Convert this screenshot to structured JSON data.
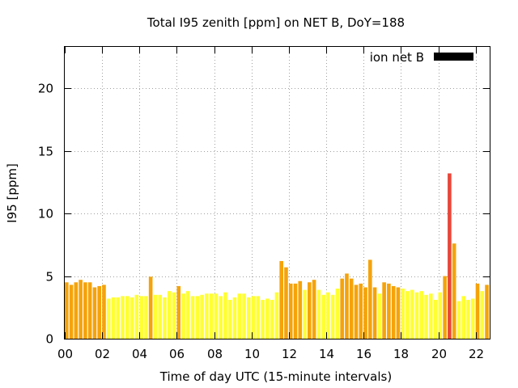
{
  "chart_data": {
    "type": "bar",
    "title": "Total I95 zenith [ppm] on NET B, DoY=188",
    "xlabel": "Time of day UTC (15-minute intervals)",
    "ylabel": "I95 [ppm]",
    "xlim": [
      0,
      22.75
    ],
    "ylim": [
      0,
      23.3
    ],
    "x_ticks": [
      {
        "value": 0,
        "label": "00"
      },
      {
        "value": 2,
        "label": "02"
      },
      {
        "value": 4,
        "label": "04"
      },
      {
        "value": 6,
        "label": "06"
      },
      {
        "value": 8,
        "label": "08"
      },
      {
        "value": 10,
        "label": "10"
      },
      {
        "value": 12,
        "label": "12"
      },
      {
        "value": 14,
        "label": "14"
      },
      {
        "value": 16,
        "label": "16"
      },
      {
        "value": 18,
        "label": "18"
      },
      {
        "value": 20,
        "label": "20"
      },
      {
        "value": 22,
        "label": "22"
      }
    ],
    "y_ticks": [
      {
        "value": 0,
        "label": "0"
      },
      {
        "value": 5,
        "label": "5"
      },
      {
        "value": 10,
        "label": "10"
      },
      {
        "value": 15,
        "label": "15"
      },
      {
        "value": 20,
        "label": "20"
      }
    ],
    "grid": true,
    "legend": {
      "label": "ion net B",
      "color": "#000000",
      "placement": "top-right"
    },
    "colors": {
      "low": "#ffff33",
      "mid": "#f5a30a",
      "high": "#e8473a"
    },
    "x": [
      0,
      0.25,
      0.5,
      0.75,
      1,
      1.25,
      1.5,
      1.75,
      2,
      2.25,
      2.5,
      2.75,
      3,
      3.25,
      3.5,
      3.75,
      4,
      4.25,
      4.5,
      4.75,
      5,
      5.25,
      5.5,
      5.75,
      6,
      6.25,
      6.5,
      6.75,
      7,
      7.25,
      7.5,
      7.75,
      8,
      8.25,
      8.5,
      8.75,
      9,
      9.25,
      9.5,
      9.75,
      10,
      10.25,
      10.5,
      10.75,
      11,
      11.25,
      11.5,
      11.75,
      12,
      12.25,
      12.5,
      12.75,
      13,
      13.25,
      13.5,
      13.75,
      14,
      14.25,
      14.5,
      14.75,
      15,
      15.25,
      15.5,
      15.75,
      16,
      16.25,
      16.5,
      16.75,
      17,
      17.25,
      17.5,
      17.75,
      18,
      18.25,
      18.5,
      18.75,
      19,
      19.25,
      19.5,
      19.75,
      20,
      20.25,
      20.5,
      20.75,
      21,
      21.25,
      21.5,
      21.75,
      22,
      22.25,
      22.5
    ],
    "values": [
      4.5,
      4.3,
      4.5,
      4.7,
      4.5,
      4.5,
      4.1,
      4.2,
      4.3,
      3.2,
      3.3,
      3.3,
      3.4,
      3.4,
      3.3,
      3.5,
      3.4,
      3.4,
      4.95,
      3.5,
      3.5,
      3.3,
      3.8,
      3.7,
      4.2,
      3.6,
      3.8,
      3.4,
      3.4,
      3.5,
      3.6,
      3.6,
      3.6,
      3.4,
      3.7,
      3.1,
      3.3,
      3.6,
      3.6,
      3.3,
      3.4,
      3.4,
      3.1,
      3.2,
      3.1,
      3.7,
      6.2,
      5.7,
      4.4,
      4.4,
      4.6,
      3.9,
      4.5,
      4.7,
      3.9,
      3.5,
      3.7,
      3.5,
      4.0,
      4.8,
      5.2,
      4.8,
      4.3,
      4.4,
      4.1,
      6.3,
      4.1,
      3.6,
      4.5,
      4.4,
      4.2,
      4.1,
      4.0,
      3.8,
      3.9,
      3.7,
      3.8,
      3.5,
      3.6,
      3.1,
      3.7,
      5.0,
      13.2,
      7.6,
      3.0,
      3.4,
      3.1,
      3.2,
      4.4,
      3.8,
      4.3
    ],
    "bar_levels": [
      "mid",
      "mid",
      "mid",
      "mid",
      "mid",
      "mid",
      "mid",
      "mid",
      "mid",
      "low",
      "low",
      "low",
      "low",
      "low",
      "low",
      "low",
      "low",
      "low",
      "mid",
      "low",
      "low",
      "low",
      "low",
      "low",
      "mid",
      "low",
      "low",
      "low",
      "low",
      "low",
      "low",
      "low",
      "low",
      "low",
      "low",
      "low",
      "low",
      "low",
      "low",
      "low",
      "low",
      "low",
      "low",
      "low",
      "low",
      "low",
      "mid",
      "mid",
      "mid",
      "mid",
      "mid",
      "low",
      "mid",
      "mid",
      "low",
      "low",
      "low",
      "low",
      "low",
      "mid",
      "mid",
      "mid",
      "mid",
      "mid",
      "mid",
      "mid",
      "mid",
      "low",
      "mid",
      "mid",
      "mid",
      "mid",
      "low",
      "low",
      "low",
      "low",
      "low",
      "low",
      "low",
      "low",
      "low",
      "mid",
      "high",
      "mid",
      "low",
      "low",
      "low",
      "low",
      "mid",
      "low",
      "mid"
    ]
  }
}
